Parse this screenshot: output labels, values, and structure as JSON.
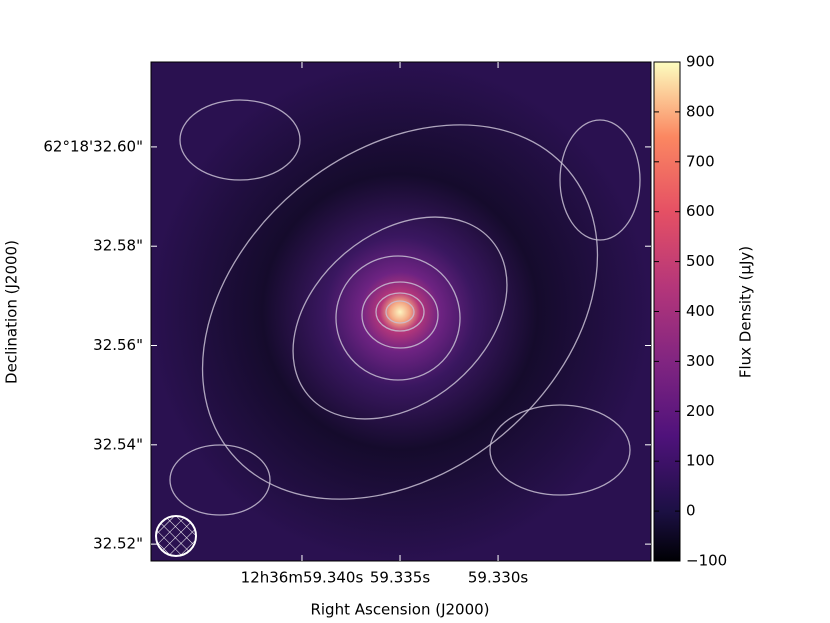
{
  "chart_data": {
    "type": "image",
    "xlabel": "Right Ascension (J2000)",
    "ylabel": "Declination (J2000)",
    "colorbar_label": "Flux Density (μJy)",
    "xlim": [
      59.3477,
      59.3222
    ],
    "xticks": [
      {
        "value": 59.34,
        "label": "12h36m59.340s"
      },
      {
        "value": 59.335,
        "label": "59.335s"
      },
      {
        "value": 59.33,
        "label": "59.330s"
      }
    ],
    "ylim": [
      32.5166,
      32.6171
    ],
    "yticks": [
      {
        "value": 32.6,
        "label": "62°18'32.60\""
      },
      {
        "value": 32.58,
        "label": "32.58\""
      },
      {
        "value": 32.56,
        "label": "32.56\""
      },
      {
        "value": 32.54,
        "label": "32.54\""
      },
      {
        "value": 32.52,
        "label": "32.52\""
      }
    ],
    "clim": [
      -100,
      900
    ],
    "cticks": [
      {
        "value": -100,
        "label": "−100"
      },
      0,
      100,
      200,
      300,
      400,
      500,
      600,
      700,
      800,
      900
    ]
  }
}
